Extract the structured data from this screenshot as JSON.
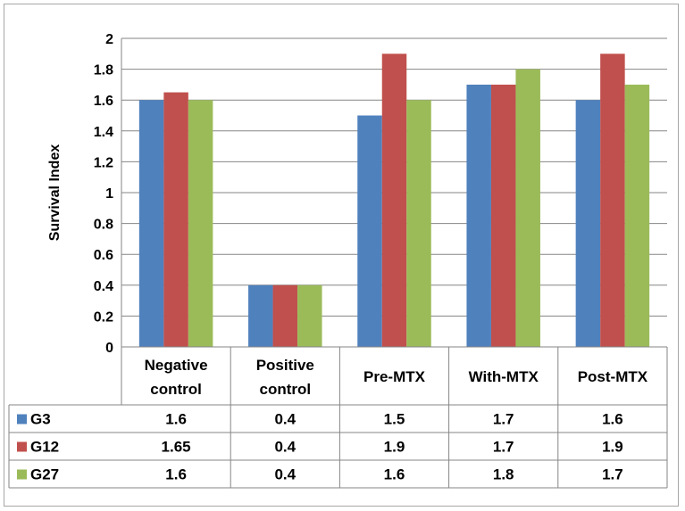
{
  "chart_data": {
    "type": "bar",
    "ylabel": "Survival Index",
    "ylim": [
      0,
      2
    ],
    "yticks": [
      "0",
      "0.2",
      "0.4",
      "0.6",
      "0.8",
      "1",
      "1.2",
      "1.4",
      "1.6",
      "1.8",
      "2"
    ],
    "grid": true,
    "legend": "data-table",
    "categories": [
      [
        "Negative",
        "control"
      ],
      [
        "Positive",
        "control"
      ],
      [
        "Pre-MTX"
      ],
      [
        "With-MTX"
      ],
      [
        "Post-MTX"
      ]
    ],
    "series": [
      {
        "name": "G3",
        "color": "#4f81bd",
        "values": [
          1.6,
          0.4,
          1.5,
          1.7,
          1.6
        ],
        "labels": [
          "1.6",
          "0.4",
          "1.5",
          "1.7",
          "1.6"
        ]
      },
      {
        "name": "G12",
        "color": "#c0504d",
        "values": [
          1.65,
          0.4,
          1.9,
          1.7,
          1.9
        ],
        "labels": [
          "1.65",
          "0.4",
          "1.9",
          "1.7",
          "1.9"
        ]
      },
      {
        "name": "G27",
        "color": "#9bbb59",
        "values": [
          1.6,
          0.4,
          1.6,
          1.8,
          1.7
        ],
        "labels": [
          "1.6",
          "0.4",
          "1.6",
          "1.8",
          "1.7"
        ]
      }
    ]
  }
}
